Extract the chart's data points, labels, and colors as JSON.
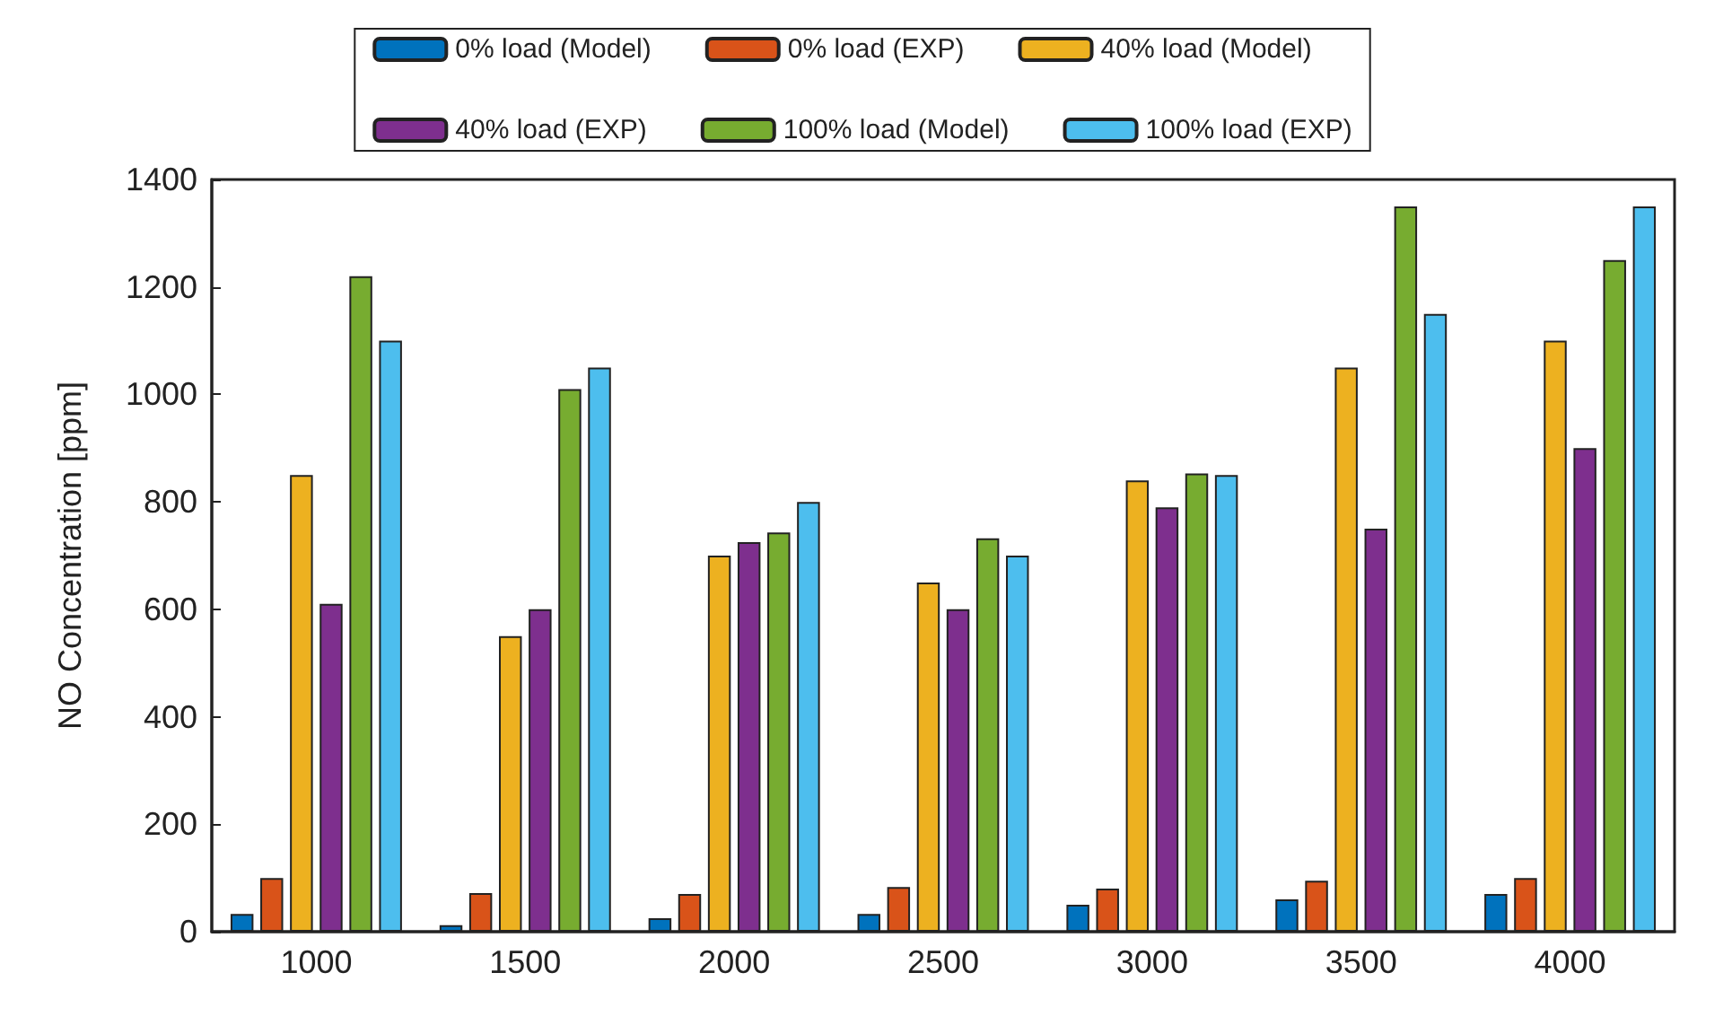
{
  "chart_data": {
    "type": "bar",
    "ylabel": "NO Concentration [ppm]",
    "categories": [
      "1000",
      "1500",
      "2000",
      "2500",
      "3000",
      "3500",
      "4000"
    ],
    "series": [
      {
        "name": "0% load (Model)",
        "color": "#0072bd",
        "values": [
          33,
          12,
          25,
          33,
          50,
          60,
          70
        ]
      },
      {
        "name": "0% load (EXP)",
        "color": "#d95319",
        "values": [
          100,
          72,
          70,
          83,
          80,
          95,
          100
        ]
      },
      {
        "name": "40% load (Model)",
        "color": "#edb120",
        "values": [
          850,
          550,
          700,
          650,
          840,
          1050,
          1100
        ]
      },
      {
        "name": "40% load (EXP)",
        "color": "#7e2f8e",
        "values": [
          610,
          600,
          725,
          600,
          790,
          750,
          900
        ]
      },
      {
        "name": "100% load (Model)",
        "color": "#77ac30",
        "values": [
          1220,
          1010,
          743,
          732,
          853,
          1350,
          1250
        ]
      },
      {
        "name": "100% load (EXP)",
        "color": "#4dbeee",
        "values": [
          1100,
          1050,
          800,
          700,
          850,
          1150,
          1350
        ]
      }
    ],
    "ylim": [
      0,
      1400
    ],
    "yticks": [
      0,
      200,
      400,
      600,
      800,
      1000,
      1200,
      1400
    ],
    "grid": false,
    "legend": "top"
  }
}
